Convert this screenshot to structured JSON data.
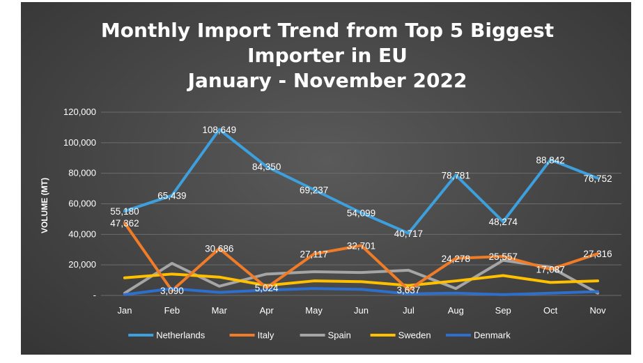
{
  "chart_data": {
    "type": "line",
    "title": [
      "Monthly Import Trend from Top 5 Biggest",
      "Importer in EU",
      "January - November 2022"
    ],
    "ylabel": "VOLUME (MT)",
    "xlabel": "",
    "categories": [
      "Jan",
      "Feb",
      "Mar",
      "Apr",
      "May",
      "Jun",
      "Jul",
      "Aug",
      "Sep",
      "Oct",
      "Nov"
    ],
    "ylim": [
      0,
      120000
    ],
    "yticks": [
      0,
      20000,
      40000,
      60000,
      80000,
      100000,
      120000
    ],
    "ytick_labels": [
      "-",
      "20,000",
      "40,000",
      "60,000",
      "80,000",
      "100,000",
      "120,000"
    ],
    "grid": true,
    "legend_position": "bottom",
    "series": [
      {
        "name": "Netherlands",
        "color": "#3d9fdb",
        "values": [
          55180,
          65439,
          108649,
          84350,
          69237,
          54099,
          40717,
          78781,
          48274,
          88842,
          76752
        ],
        "labels": [
          "55,180",
          "65,439",
          "108,649",
          "84,350",
          "69,237",
          "54,099",
          "40,717",
          "78,781",
          "48,274",
          "88,842",
          "76,752"
        ]
      },
      {
        "name": "Italy",
        "color": "#f07c28",
        "values": [
          47362,
          3090,
          30686,
          5024,
          27117,
          32701,
          3637,
          24278,
          25557,
          17087,
          27316
        ],
        "labels": [
          "47,362",
          "3,090",
          "30,686",
          "5,024",
          "27,117",
          "32,701",
          "3,637",
          "24,278",
          "25,557",
          "17,087",
          "27,316"
        ]
      },
      {
        "name": "Spain",
        "color": "#a5a5a5",
        "values": [
          1500,
          21000,
          6000,
          14000,
          15500,
          15000,
          16500,
          4500,
          23000,
          18500,
          1500
        ]
      },
      {
        "name": "Sweden",
        "color": "#ffc000",
        "values": [
          11500,
          14000,
          12000,
          6500,
          9500,
          9000,
          6500,
          9500,
          13000,
          8500,
          9500
        ]
      },
      {
        "name": "Denmark",
        "color": "#2e6fcc",
        "values": [
          500,
          4500,
          2000,
          3500,
          4500,
          4000,
          1000,
          1500,
          500,
          1500,
          2500
        ]
      }
    ]
  }
}
